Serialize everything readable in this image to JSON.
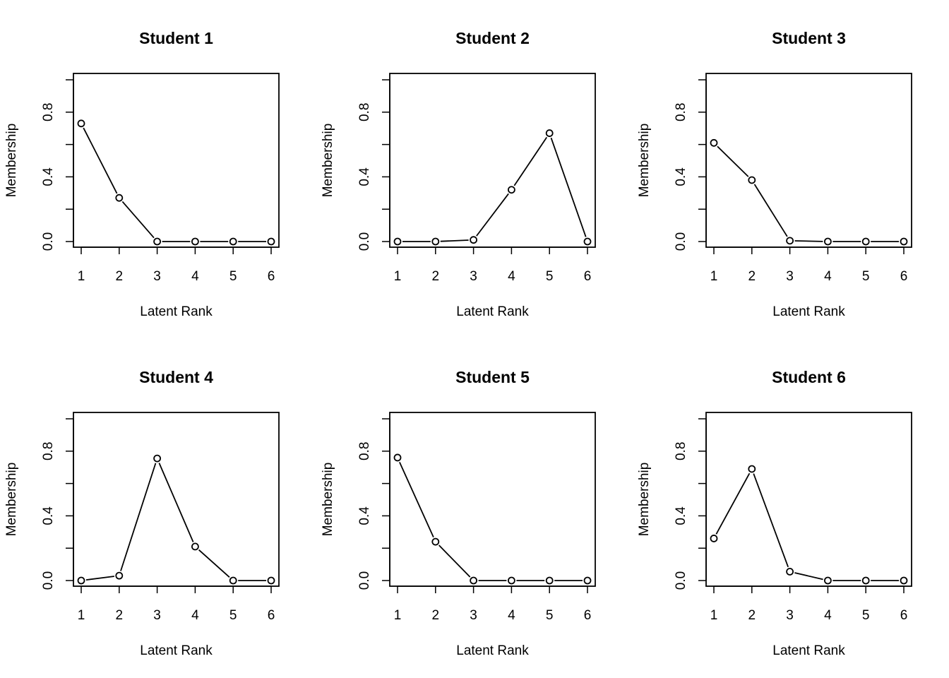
{
  "chart_data": [
    {
      "type": "line",
      "title": "Student 1",
      "xlabel": "Latent Rank",
      "ylabel": "Membership",
      "x": [
        1,
        2,
        3,
        4,
        5,
        6
      ],
      "xticks": [
        "1",
        "2",
        "3",
        "4",
        "5",
        "6"
      ],
      "yticks": [
        "0.0",
        "0.4",
        "0.8"
      ],
      "ylim": [
        0,
        1
      ],
      "values": [
        0.73,
        0.27,
        0.0,
        0.0,
        0.0,
        0.0
      ],
      "grid": false,
      "marker": "open-circle"
    },
    {
      "type": "line",
      "title": "Student 2",
      "xlabel": "Latent Rank",
      "ylabel": "Membership",
      "x": [
        1,
        2,
        3,
        4,
        5,
        6
      ],
      "xticks": [
        "1",
        "2",
        "3",
        "4",
        "5",
        "6"
      ],
      "yticks": [
        "0.0",
        "0.4",
        "0.8"
      ],
      "ylim": [
        0,
        1
      ],
      "values": [
        0.0,
        0.0,
        0.01,
        0.32,
        0.67,
        0.0
      ],
      "grid": false,
      "marker": "open-circle"
    },
    {
      "type": "line",
      "title": "Student 3",
      "xlabel": "Latent Rank",
      "ylabel": "Membership",
      "x": [
        1,
        2,
        3,
        4,
        5,
        6
      ],
      "xticks": [
        "1",
        "2",
        "3",
        "4",
        "5",
        "6"
      ],
      "yticks": [
        "0.0",
        "0.4",
        "0.8"
      ],
      "ylim": [
        0,
        1
      ],
      "values": [
        0.61,
        0.38,
        0.005,
        0.0,
        0.0,
        0.0
      ],
      "grid": false,
      "marker": "open-circle"
    },
    {
      "type": "line",
      "title": "Student 4",
      "xlabel": "Latent Rank",
      "ylabel": "Membership",
      "x": [
        1,
        2,
        3,
        4,
        5,
        6
      ],
      "xticks": [
        "1",
        "2",
        "3",
        "4",
        "5",
        "6"
      ],
      "yticks": [
        "0.0",
        "0.4",
        "0.8"
      ],
      "ylim": [
        0,
        1
      ],
      "values": [
        0.0,
        0.03,
        0.755,
        0.21,
        0.0,
        0.0
      ],
      "grid": false,
      "marker": "open-circle"
    },
    {
      "type": "line",
      "title": "Student 5",
      "xlabel": "Latent Rank",
      "ylabel": "Membership",
      "x": [
        1,
        2,
        3,
        4,
        5,
        6
      ],
      "xticks": [
        "1",
        "2",
        "3",
        "4",
        "5",
        "6"
      ],
      "yticks": [
        "0.0",
        "0.4",
        "0.8"
      ],
      "ylim": [
        0,
        1
      ],
      "values": [
        0.76,
        0.24,
        0.0,
        0.0,
        0.0,
        0.0
      ],
      "grid": false,
      "marker": "open-circle"
    },
    {
      "type": "line",
      "title": "Student 6",
      "xlabel": "Latent Rank",
      "ylabel": "Membership",
      "x": [
        1,
        2,
        3,
        4,
        5,
        6
      ],
      "xticks": [
        "1",
        "2",
        "3",
        "4",
        "5",
        "6"
      ],
      "yticks": [
        "0.0",
        "0.4",
        "0.8"
      ],
      "ylim": [
        0,
        1
      ],
      "values": [
        0.26,
        0.69,
        0.055,
        0.0,
        0.0,
        0.0
      ],
      "grid": false,
      "marker": "open-circle"
    }
  ]
}
